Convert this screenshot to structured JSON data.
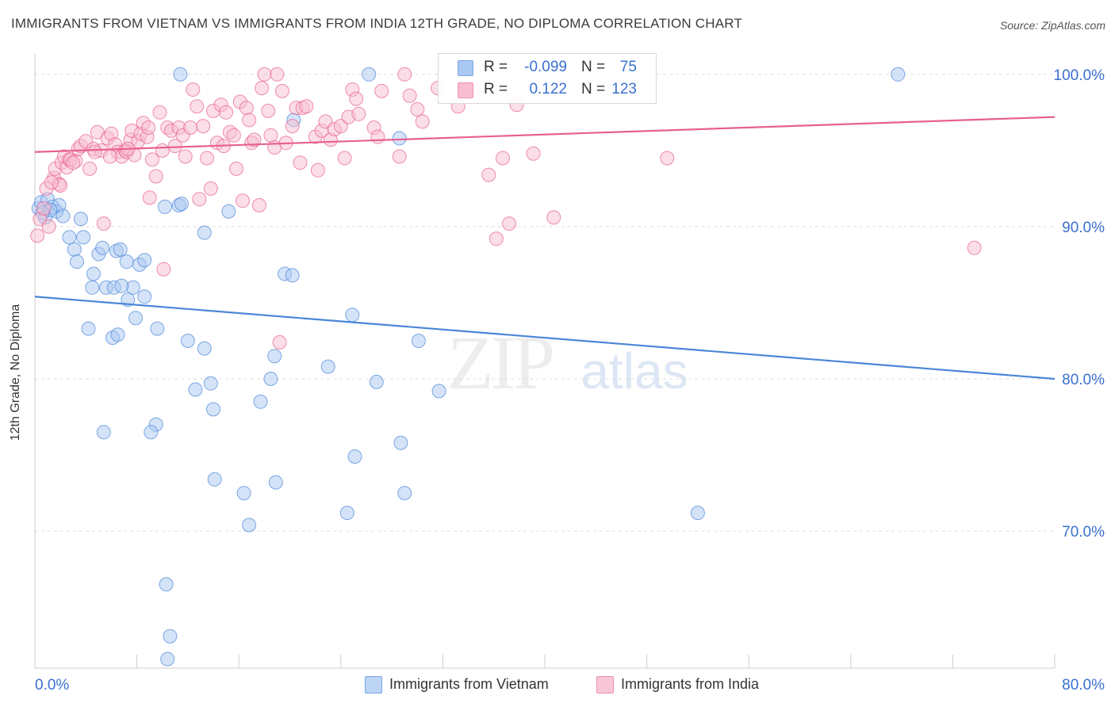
{
  "title": "IMMIGRANTS FROM VIETNAM VS IMMIGRANTS FROM INDIA 12TH GRADE, NO DIPLOMA CORRELATION CHART",
  "source": "Source: ZipAtlas.com",
  "watermark": {
    "zip": "ZIP",
    "atlas": "atlas"
  },
  "legend": {
    "r_label": "R =",
    "n_label": "N =",
    "rows": [
      {
        "r_value": "-0.099",
        "n_value": "75",
        "color": "#4a86d8"
      },
      {
        "r_value": "0.122",
        "n_value": "123",
        "color": "#e8608e"
      }
    ]
  },
  "chart_data": {
    "type": "scatter",
    "title": "IMMIGRANTS FROM VIETNAM VS IMMIGRANTS FROM INDIA 12TH GRADE, NO DIPLOMA CORRELATION CHART",
    "xlabel": "",
    "ylabel": "12th Grade, No Diploma",
    "xlim": [
      0,
      80
    ],
    "ylim": [
      61,
      101.5
    ],
    "x_tick_labels": [
      "0.0%",
      "80.0%"
    ],
    "y_ticks": [
      70,
      80,
      90,
      100
    ],
    "y_tick_labels": [
      "70.0%",
      "80.0%",
      "90.0%",
      "100.0%"
    ],
    "grid": true,
    "legend_position": "bottom",
    "series": [
      {
        "name": "Immigrants from Vietnam",
        "color": "#4a86d8",
        "fill": "#a9c8f2",
        "R": -0.099,
        "N": 75,
        "trend": {
          "x": [
            0,
            80
          ],
          "y": [
            85.4,
            80.0
          ]
        },
        "points": [
          [
            0.3,
            91.2
          ],
          [
            0.5,
            91.6
          ],
          [
            0.8,
            90.6
          ],
          [
            1.0,
            91.8
          ],
          [
            1.4,
            91.3
          ],
          [
            1.7,
            91.0
          ],
          [
            1.9,
            91.4
          ],
          [
            2.2,
            90.7
          ],
          [
            2.7,
            89.3
          ],
          [
            3.1,
            88.5
          ],
          [
            3.3,
            87.7
          ],
          [
            3.6,
            90.5
          ],
          [
            3.8,
            89.3
          ],
          [
            4.6,
            86.9
          ],
          [
            4.5,
            86.0
          ],
          [
            4.2,
            83.3
          ],
          [
            5.0,
            88.2
          ],
          [
            5.3,
            88.6
          ],
          [
            5.6,
            86.0
          ],
          [
            6.2,
            86.0
          ],
          [
            6.1,
            82.7
          ],
          [
            6.4,
            88.4
          ],
          [
            6.5,
            82.9
          ],
          [
            6.7,
            88.5
          ],
          [
            7.2,
            87.7
          ],
          [
            7.3,
            85.2
          ],
          [
            7.7,
            86.0
          ],
          [
            7.9,
            84.0
          ],
          [
            8.2,
            87.5
          ],
          [
            8.6,
            85.4
          ],
          [
            8.6,
            87.8
          ],
          [
            9.6,
            83.3
          ],
          [
            9.5,
            77.0
          ],
          [
            9.1,
            76.5
          ],
          [
            10.2,
            91.3
          ],
          [
            11.3,
            91.4
          ],
          [
            11.5,
            91.5
          ],
          [
            11.4,
            100.0
          ],
          [
            12.0,
            82.5
          ],
          [
            12.6,
            79.3
          ],
          [
            13.3,
            82.0
          ],
          [
            13.8,
            79.7
          ],
          [
            13.3,
            89.6
          ],
          [
            14.0,
            78.0
          ],
          [
            14.1,
            73.4
          ],
          [
            15.2,
            91.0
          ],
          [
            16.4,
            72.5
          ],
          [
            16.8,
            70.4
          ],
          [
            17.7,
            78.5
          ],
          [
            18.5,
            80.0
          ],
          [
            18.8,
            81.5
          ],
          [
            18.9,
            73.2
          ],
          [
            19.6,
            86.9
          ],
          [
            20.2,
            86.8
          ],
          [
            20.3,
            97.0
          ],
          [
            23.0,
            80.8
          ],
          [
            24.5,
            71.2
          ],
          [
            24.9,
            84.2
          ],
          [
            25.1,
            74.9
          ],
          [
            26.2,
            100.0
          ],
          [
            26.8,
            79.8
          ],
          [
            28.6,
            95.8
          ],
          [
            28.7,
            75.8
          ],
          [
            29.0,
            72.5
          ],
          [
            30.1,
            82.5
          ],
          [
            31.7,
            79.2
          ],
          [
            10.3,
            66.5
          ],
          [
            10.6,
            63.1
          ],
          [
            10.4,
            61.6
          ],
          [
            52.0,
            71.2
          ],
          [
            67.7,
            100.0
          ],
          [
            5.4,
            76.5
          ],
          [
            6.8,
            86.1
          ],
          [
            1.2,
            91.1
          ],
          [
            0.6,
            90.9
          ]
        ]
      },
      {
        "name": "Immigrants from India",
        "color": "#e8608e",
        "fill": "#f8bdd0",
        "R": 0.122,
        "N": 123,
        "trend": {
          "x": [
            0,
            80
          ],
          "y": [
            94.9,
            97.2
          ]
        },
        "points": [
          [
            0.2,
            89.4
          ],
          [
            0.4,
            90.5
          ],
          [
            0.7,
            91.2
          ],
          [
            0.9,
            92.5
          ],
          [
            1.1,
            90.0
          ],
          [
            1.5,
            93.2
          ],
          [
            1.6,
            93.8
          ],
          [
            1.9,
            92.8
          ],
          [
            2.1,
            94.2
          ],
          [
            2.3,
            94.6
          ],
          [
            2.5,
            93.9
          ],
          [
            2.7,
            94.4
          ],
          [
            2.8,
            94.4
          ],
          [
            3.2,
            94.3
          ],
          [
            3.4,
            95.1
          ],
          [
            3.6,
            95.3
          ],
          [
            4.0,
            95.6
          ],
          [
            4.3,
            93.8
          ],
          [
            4.6,
            95.1
          ],
          [
            4.9,
            96.2
          ],
          [
            5.2,
            95.0
          ],
          [
            5.4,
            90.2
          ],
          [
            5.7,
            95.8
          ],
          [
            6.0,
            96.1
          ],
          [
            6.3,
            95.4
          ],
          [
            6.5,
            94.9
          ],
          [
            6.8,
            94.6
          ],
          [
            7.1,
            95.0
          ],
          [
            7.2,
            94.9
          ],
          [
            7.5,
            95.7
          ],
          [
            7.6,
            96.3
          ],
          [
            7.8,
            94.7
          ],
          [
            8.1,
            95.6
          ],
          [
            8.3,
            96.1
          ],
          [
            8.5,
            96.8
          ],
          [
            8.8,
            95.9
          ],
          [
            8.9,
            96.5
          ],
          [
            9.2,
            94.4
          ],
          [
            9.5,
            93.3
          ],
          [
            9.0,
            91.9
          ],
          [
            9.8,
            97.5
          ],
          [
            10.0,
            95.0
          ],
          [
            10.1,
            87.2
          ],
          [
            10.4,
            96.5
          ],
          [
            10.7,
            96.3
          ],
          [
            11.0,
            95.3
          ],
          [
            11.3,
            96.5
          ],
          [
            11.6,
            96.0
          ],
          [
            11.8,
            94.6
          ],
          [
            12.2,
            96.5
          ],
          [
            12.4,
            99.0
          ],
          [
            12.7,
            97.9
          ],
          [
            12.9,
            91.8
          ],
          [
            13.2,
            96.6
          ],
          [
            13.5,
            94.5
          ],
          [
            13.8,
            92.5
          ],
          [
            14.0,
            97.6
          ],
          [
            14.3,
            95.5
          ],
          [
            14.6,
            98.0
          ],
          [
            14.8,
            95.3
          ],
          [
            15.0,
            97.5
          ],
          [
            15.3,
            96.2
          ],
          [
            15.6,
            96.0
          ],
          [
            15.8,
            93.8
          ],
          [
            16.1,
            98.2
          ],
          [
            16.3,
            91.7
          ],
          [
            16.6,
            97.8
          ],
          [
            16.8,
            97.0
          ],
          [
            17.0,
            95.5
          ],
          [
            17.2,
            95.7
          ],
          [
            17.6,
            91.4
          ],
          [
            17.8,
            99.1
          ],
          [
            18.0,
            100.0
          ],
          [
            18.3,
            97.6
          ],
          [
            18.5,
            96.0
          ],
          [
            18.8,
            95.2
          ],
          [
            19.0,
            100.0
          ],
          [
            19.2,
            82.4
          ],
          [
            19.4,
            98.9
          ],
          [
            19.7,
            95.5
          ],
          [
            20.2,
            96.6
          ],
          [
            20.5,
            97.8
          ],
          [
            20.8,
            94.2
          ],
          [
            21.0,
            97.8
          ],
          [
            21.3,
            97.9
          ],
          [
            22.0,
            95.9
          ],
          [
            22.2,
            93.7
          ],
          [
            22.5,
            96.3
          ],
          [
            22.8,
            96.9
          ],
          [
            23.2,
            95.7
          ],
          [
            23.5,
            96.4
          ],
          [
            24.0,
            96.6
          ],
          [
            24.3,
            94.5
          ],
          [
            24.6,
            97.2
          ],
          [
            24.9,
            99.0
          ],
          [
            25.2,
            98.4
          ],
          [
            25.4,
            97.4
          ],
          [
            26.6,
            96.5
          ],
          [
            26.9,
            95.9
          ],
          [
            27.2,
            98.9
          ],
          [
            28.6,
            94.6
          ],
          [
            29.0,
            100.0
          ],
          [
            29.4,
            98.6
          ],
          [
            30.0,
            97.7
          ],
          [
            30.4,
            96.9
          ],
          [
            31.6,
            99.1
          ],
          [
            33.2,
            97.9
          ],
          [
            34.4,
            99.0
          ],
          [
            35.6,
            93.4
          ],
          [
            36.2,
            89.2
          ],
          [
            36.7,
            94.5
          ],
          [
            37.2,
            90.2
          ],
          [
            37.8,
            98.0
          ],
          [
            39.1,
            94.8
          ],
          [
            40.7,
            90.6
          ],
          [
            49.6,
            94.5
          ],
          [
            73.7,
            88.6
          ],
          [
            5.9,
            94.6
          ],
          [
            4.7,
            94.9
          ],
          [
            7.3,
            95.1
          ],
          [
            3.0,
            94.2
          ],
          [
            2.0,
            92.7
          ],
          [
            1.3,
            92.9
          ]
        ]
      }
    ]
  }
}
